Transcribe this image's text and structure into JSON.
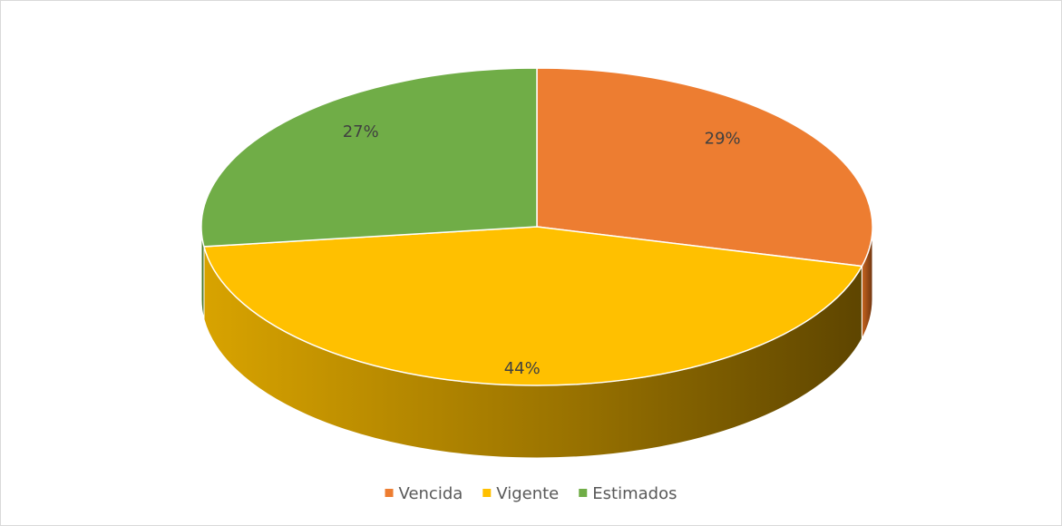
{
  "chart_data": {
    "type": "pie3d",
    "categories": [
      "Vencida",
      "Vigente",
      "Estimados"
    ],
    "values": [
      29,
      44,
      27
    ],
    "value_labels": [
      "29%",
      "44%",
      "27%"
    ],
    "colors": [
      "#ED7D31",
      "#FFC000",
      "#70AD47"
    ],
    "legend": "bottom"
  }
}
